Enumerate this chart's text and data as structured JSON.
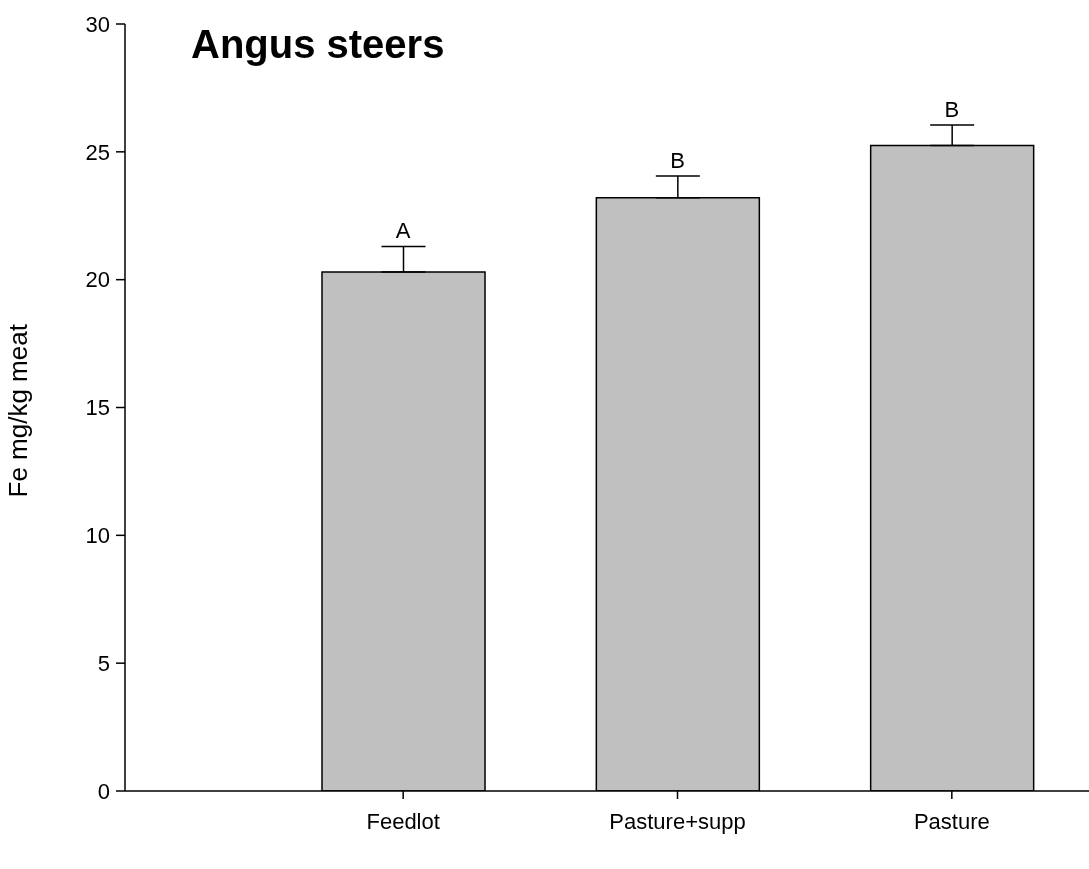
{
  "chart_data": {
    "type": "bar",
    "title": "Angus steers",
    "ylabel": "Fe mg/kg meat",
    "categories": [
      "Feedlot",
      "Pasture+supp",
      "Pasture"
    ],
    "values": [
      20.3,
      23.2,
      25.25
    ],
    "errors": [
      [
        20.3,
        21.3
      ],
      [
        23.2,
        24.05
      ],
      [
        25.25,
        26.05
      ]
    ],
    "color": "#c0c0c0",
    "ylim": [
      0,
      30
    ],
    "yticks": [
      0,
      5,
      10,
      15,
      20,
      25,
      30
    ],
    "grid": false,
    "legend": false,
    "annotations": [
      {
        "text": "A",
        "x": "Feedlot",
        "y": 21.3
      },
      {
        "text": "B",
        "x": "Pasture+supp",
        "y": 24.05
      },
      {
        "text": "B",
        "x": "Pasture",
        "y": 26.05
      }
    ]
  }
}
